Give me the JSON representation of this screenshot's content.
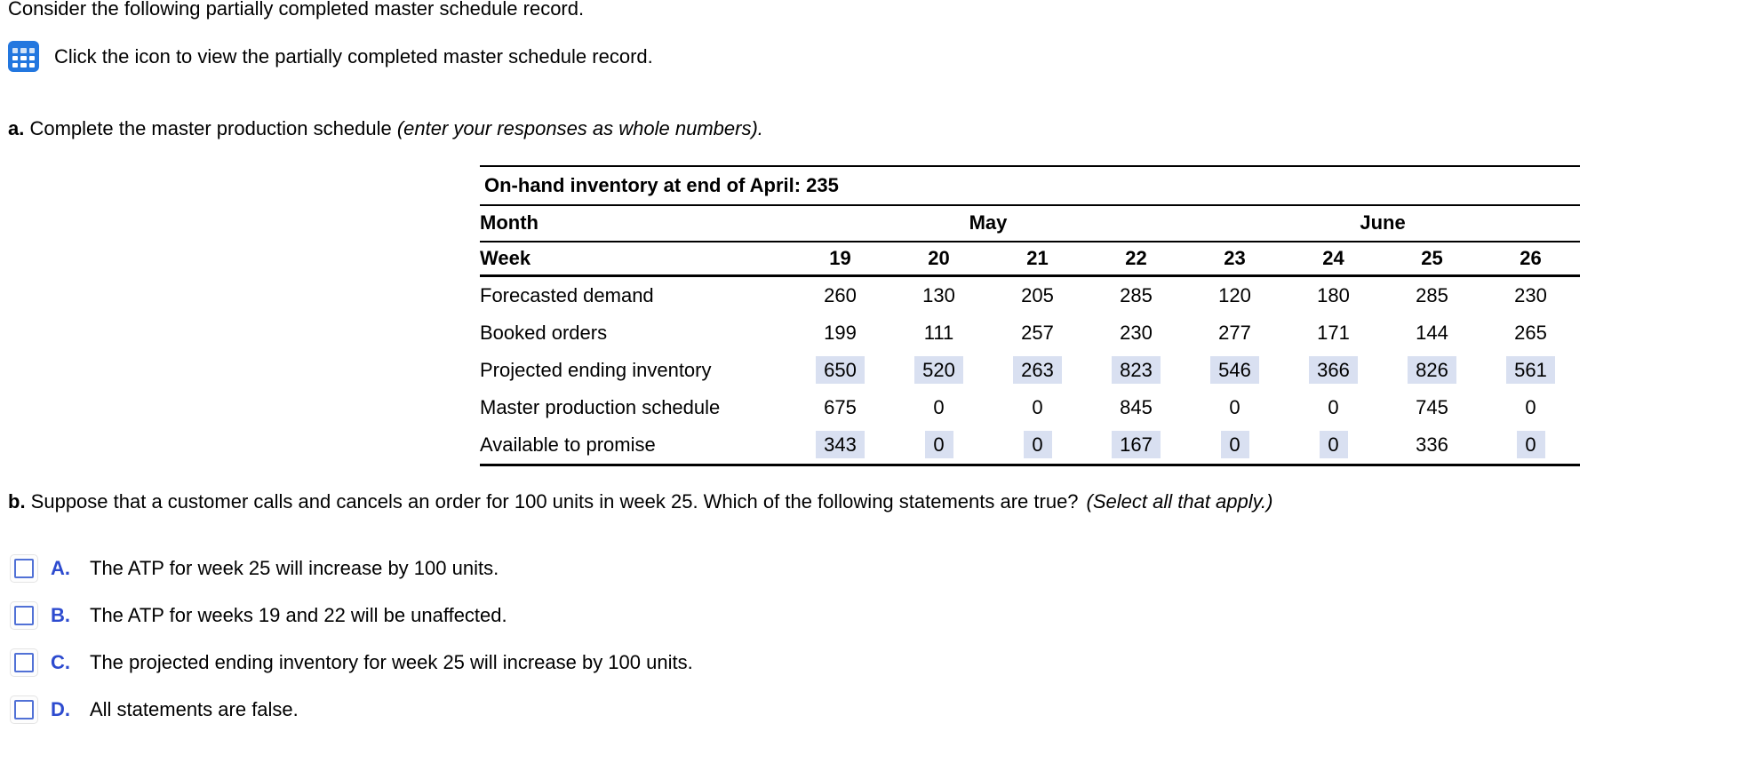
{
  "intro": {
    "text": "Consider the following partially completed master schedule record.",
    "icon_text": "Click the icon to view the partially completed master schedule record.",
    "icon": "table-grid-icon"
  },
  "part_a": {
    "label": "a.",
    "text": " Complete the master production schedule ",
    "hint": "(enter your responses as whole numbers)."
  },
  "part_b": {
    "label": "b.",
    "text": " Suppose that a customer calls and cancels an order for 100 units in week 25. Which of the following statements are true?",
    "hint": "(Select all that apply.)"
  },
  "colors": {
    "highlight_cell": "#d9e0f1",
    "checkbox_border": "#5171d6",
    "option_letter_blue": "#2d4bcf",
    "icon_blue": "#2377df"
  },
  "table": {
    "on_hand_label": "On-hand inventory at end of April: 235",
    "month_label": "Month",
    "months": [
      "May",
      "June"
    ],
    "week_label": "Week",
    "weeks": [
      "19",
      "20",
      "21",
      "22",
      "23",
      "24",
      "25",
      "26"
    ],
    "rows": [
      {
        "label": "Forecasted demand",
        "values": [
          "260",
          "130",
          "205",
          "285",
          "120",
          "180",
          "285",
          "230"
        ],
        "highlight": [
          false,
          false,
          false,
          false,
          false,
          false,
          false,
          false
        ]
      },
      {
        "label": "Booked orders",
        "values": [
          "199",
          "111",
          "257",
          "230",
          "277",
          "171",
          "144",
          "265"
        ],
        "highlight": [
          false,
          false,
          false,
          false,
          false,
          false,
          false,
          false
        ]
      },
      {
        "label": "Projected ending inventory",
        "values": [
          "650",
          "520",
          "263",
          "823",
          "546",
          "366",
          "826",
          "561"
        ],
        "highlight": [
          true,
          true,
          true,
          true,
          true,
          true,
          true,
          true
        ]
      },
      {
        "label": "Master production schedule",
        "values": [
          "675",
          "0",
          "0",
          "845",
          "0",
          "0",
          "745",
          "0"
        ],
        "highlight": [
          false,
          false,
          false,
          false,
          false,
          false,
          false,
          false
        ]
      },
      {
        "label": "Available to promise",
        "values": [
          "343",
          "0",
          "0",
          "167",
          "0",
          "0",
          "336",
          "0"
        ],
        "highlight": [
          true,
          true,
          true,
          true,
          true,
          true,
          false,
          true
        ]
      }
    ]
  },
  "options": [
    {
      "letter": "A.",
      "text": "The ATP for week 25 will increase by 100 units."
    },
    {
      "letter": "B.",
      "text": "The ATP for weeks 19 and 22 will be unaffected."
    },
    {
      "letter": "C.",
      "text": "The projected ending inventory for week 25 will increase by 100 units."
    },
    {
      "letter": "D.",
      "text": "All statements are false."
    }
  ]
}
